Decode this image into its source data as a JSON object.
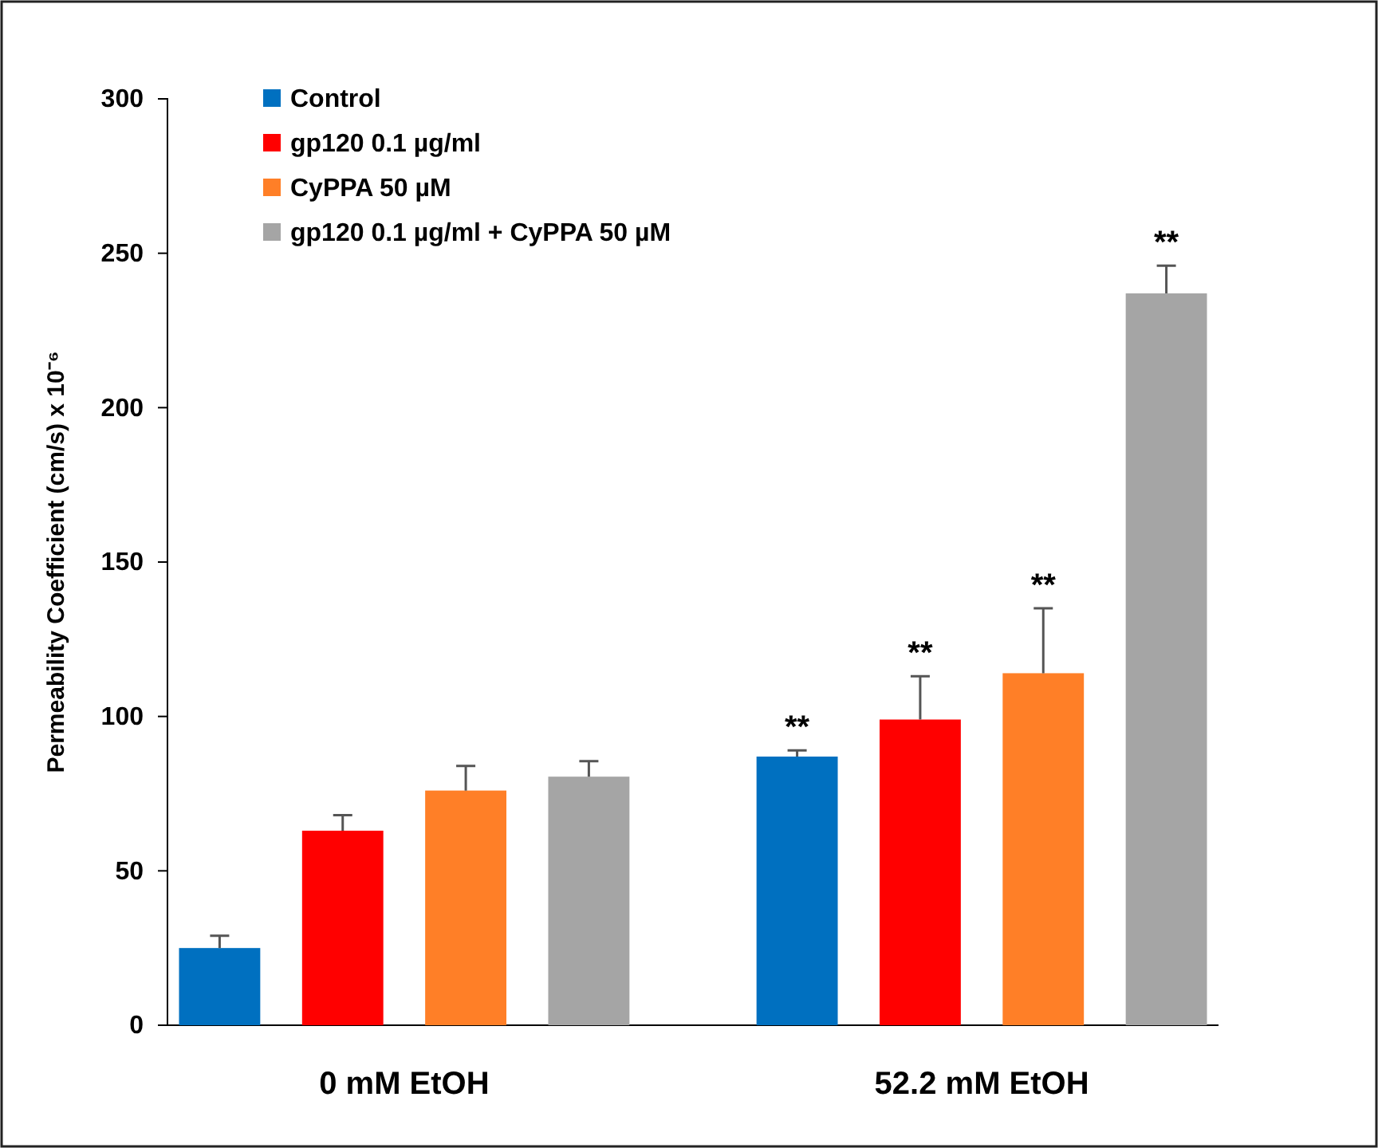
{
  "chart_data": {
    "type": "bar",
    "ylabel": "Permeability Coefficient (cm/s) x 10⁻⁶",
    "categories": [
      "0  mM EtOH",
      "52.2 mM EtOH"
    ],
    "series": [
      {
        "name": "Control",
        "color": "#0070c0",
        "values": [
          25,
          87
        ],
        "errors": [
          4,
          2
        ],
        "value_labels": [
          null,
          "**"
        ]
      },
      {
        "name": "gp120 0.1 µg/ml",
        "color": "#ff0000",
        "values": [
          63,
          99
        ],
        "errors": [
          5,
          14
        ],
        "value_labels": [
          null,
          "**"
        ]
      },
      {
        "name": "CyPPA 50 µM",
        "color": "#ff7f27",
        "values": [
          76,
          114
        ],
        "errors": [
          8,
          21
        ],
        "value_labels": [
          null,
          "**"
        ]
      },
      {
        "name": "gp120 0.1 µg/ml + CyPPA 50 µM",
        "color": "#a5a5a5",
        "values": [
          80.5,
          237
        ],
        "errors": [
          5,
          9
        ],
        "value_labels": [
          null,
          "**"
        ]
      }
    ],
    "ylim": [
      0,
      300
    ],
    "yticks": [
      0,
      50,
      100,
      150,
      200,
      250,
      300
    ],
    "grid": false,
    "legend": "top left"
  }
}
